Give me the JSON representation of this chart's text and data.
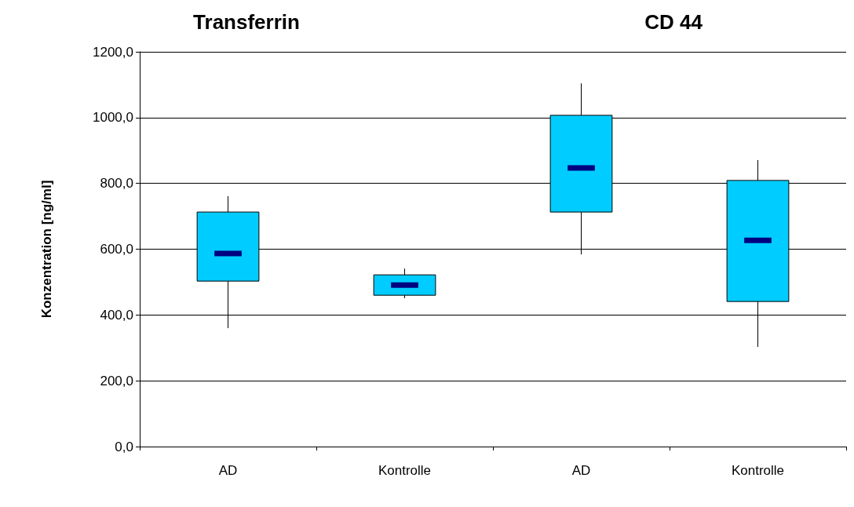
{
  "chart_data": [
    {
      "type": "box",
      "title": "Transferrin",
      "ylabel": "Konzentration [ng/ml]",
      "categories": [
        "AD",
        "Kontrolle"
      ],
      "boxes": [
        {
          "low": 360,
          "q1": 503,
          "median": 587,
          "q3": 713,
          "high": 761
        },
        {
          "low": 451,
          "q1": 460,
          "median": 491,
          "q3": 522,
          "high": 541
        }
      ],
      "color": "#00ccff",
      "ylim": [
        0,
        1200
      ],
      "yticks": [
        {
          "value": 0,
          "label": "0,0"
        },
        {
          "value": 200,
          "label": "200,0"
        },
        {
          "value": 400,
          "label": "400,0"
        },
        {
          "value": 600,
          "label": "600,0"
        },
        {
          "value": 800,
          "label": "800,0"
        },
        {
          "value": 1000,
          "label": "1000,0"
        },
        {
          "value": 1200,
          "label": "1200,0"
        }
      ],
      "grid": "y"
    },
    {
      "type": "box",
      "title": "CD 44",
      "categories": [
        "AD",
        "Kontrolle"
      ],
      "boxes": [
        {
          "low": 584,
          "q1": 713,
          "median": 847,
          "q3": 1007,
          "high": 1104
        },
        {
          "low": 303,
          "q1": 441,
          "median": 627,
          "q3": 809,
          "high": 871
        }
      ],
      "color": "#00ccff",
      "ylim": [
        0,
        1200
      ],
      "yticks": [
        0,
        200,
        400,
        600,
        800,
        1000,
        1200
      ],
      "grid": "y",
      "tick_labels": "x"
    }
  ]
}
